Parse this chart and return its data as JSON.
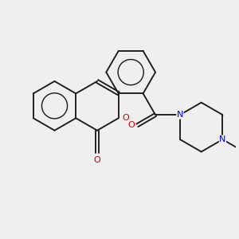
{
  "background_color": "#efefef",
  "bond_color": "#1a1a1a",
  "oxygen_color": "#cc0000",
  "nitrogen_color": "#0000cc",
  "figsize": [
    3.0,
    3.0
  ],
  "dpi": 100,
  "xlim": [
    -1.6,
    1.8
  ],
  "ylim": [
    -1.5,
    1.5
  ],
  "lw": 1.35,
  "fs": 8.0
}
